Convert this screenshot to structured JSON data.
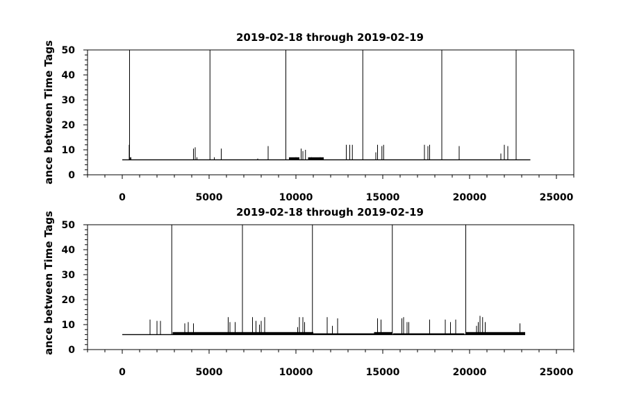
{
  "chart_data": [
    {
      "type": "line",
      "title": "2019-02-18 through 2019-02-19",
      "ylabel": "ance between Time Tags",
      "xlabel": "",
      "xlim": [
        -2000,
        26000
      ],
      "ylim": [
        0,
        50
      ],
      "xticks": [
        0,
        5000,
        10000,
        15000,
        20000,
        25000
      ],
      "xtick_labels": [
        "0",
        "5000",
        "10000",
        "15000",
        "20000",
        "25000"
      ],
      "yticks": [
        0,
        10,
        20,
        30,
        40,
        50
      ],
      "ytick_labels": [
        "0",
        "10",
        "20",
        "30",
        "40",
        "50"
      ],
      "grid": false,
      "series": [
        {
          "baseline": 6,
          "x_range": [
            0,
            23500
          ],
          "spikes": [
            [
              400,
              12
            ],
            [
              450,
              7
            ],
            [
              500,
              7
            ],
            [
              4100,
              10.5
            ],
            [
              4200,
              11
            ],
            [
              4300,
              7
            ],
            [
              5300,
              7
            ],
            [
              5700,
              10.5
            ],
            [
              7800,
              6.5
            ],
            [
              8400,
              11.5
            ],
            [
              10000,
              7
            ],
            [
              10300,
              10.5
            ],
            [
              10400,
              9.5
            ],
            [
              10550,
              10
            ],
            [
              10900,
              7
            ],
            [
              11400,
              7
            ],
            [
              12900,
              12
            ],
            [
              13100,
              12
            ],
            [
              13250,
              12
            ],
            [
              14600,
              9
            ],
            [
              14700,
              12
            ],
            [
              14950,
              11.5
            ],
            [
              15050,
              12
            ],
            [
              17400,
              12
            ],
            [
              17600,
              11.5
            ],
            [
              17700,
              12
            ],
            [
              19400,
              11.5
            ],
            [
              21800,
              8.5
            ],
            [
              22000,
              12
            ],
            [
              22200,
              11.5
            ]
          ],
          "resets": [
            420,
            5050,
            9420,
            13850,
            18400,
            22680
          ],
          "thick_segments": [
            [
              9600,
              10200,
              7
            ],
            [
              10700,
              11600,
              7
            ]
          ]
        }
      ]
    },
    {
      "type": "line",
      "title": "2019-02-18 through 2019-02-19",
      "ylabel": "ance between Time Tags",
      "xlabel": "",
      "xlim": [
        -2000,
        26000
      ],
      "ylim": [
        0,
        50
      ],
      "xticks": [
        0,
        5000,
        10000,
        15000,
        20000,
        25000
      ],
      "xtick_labels": [
        "0",
        "5000",
        "10000",
        "15000",
        "20000",
        "25000"
      ],
      "yticks": [
        0,
        10,
        20,
        30,
        40,
        50
      ],
      "ytick_labels": [
        "0",
        "10",
        "20",
        "30",
        "40",
        "50"
      ],
      "grid": false,
      "series": [
        {
          "baseline": 6,
          "x_range": [
            0,
            23200
          ],
          "spikes": [
            [
              1600,
              12
            ],
            [
              2000,
              11.5
            ],
            [
              2200,
              11.5
            ],
            [
              3600,
              10.5
            ],
            [
              3800,
              11
            ],
            [
              4100,
              10.5
            ],
            [
              6100,
              13
            ],
            [
              6200,
              11
            ],
            [
              6500,
              11
            ],
            [
              7500,
              13
            ],
            [
              7700,
              11.5
            ],
            [
              7900,
              10
            ],
            [
              8000,
              11.5
            ],
            [
              8200,
              13
            ],
            [
              10100,
              9
            ],
            [
              10200,
              13
            ],
            [
              10400,
              13
            ],
            [
              10500,
              11
            ],
            [
              11800,
              13
            ],
            [
              12100,
              9.5
            ],
            [
              12400,
              12.5
            ],
            [
              14700,
              12.5
            ],
            [
              14900,
              12
            ],
            [
              16100,
              12.5
            ],
            [
              16200,
              13
            ],
            [
              16400,
              11
            ],
            [
              16500,
              11
            ],
            [
              17700,
              12
            ],
            [
              18600,
              12
            ],
            [
              18900,
              11
            ],
            [
              19200,
              12
            ],
            [
              20400,
              9.5
            ],
            [
              20500,
              11
            ],
            [
              20600,
              13.5
            ],
            [
              20750,
              13
            ],
            [
              20900,
              11
            ],
            [
              22900,
              10.5
            ]
          ],
          "resets": [
            2850,
            6920,
            10950,
            15550,
            19780
          ],
          "thick_segments": [
            [
              2900,
              11000,
              7
            ],
            [
              11000,
              14500,
              6.5
            ],
            [
              14500,
              15550,
              7
            ],
            [
              15600,
              19700,
              6.5
            ],
            [
              19800,
              23200,
              7
            ]
          ]
        }
      ]
    }
  ]
}
